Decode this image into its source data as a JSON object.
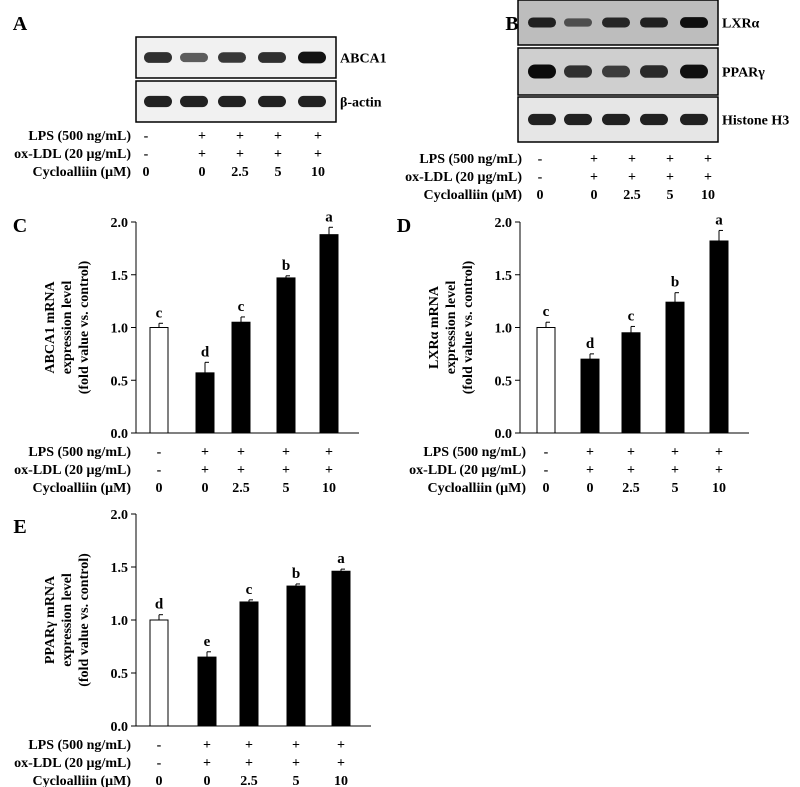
{
  "treatments": {
    "rows": [
      {
        "label": "LPS (500 ng/mL)",
        "values": [
          "-",
          "+",
          "+",
          "+",
          "+"
        ]
      },
      {
        "label": "ox-LDL (20 μg/mL)",
        "values": [
          "-",
          "+",
          "+",
          "+",
          "+"
        ]
      },
      {
        "label": "Cycloalliin (μM)",
        "values": [
          "0",
          "0",
          "2.5",
          "5",
          "10"
        ]
      }
    ]
  },
  "blots": [
    {
      "panel": "A",
      "bands": [
        "ABCA1",
        "β-actin"
      ]
    },
    {
      "panel": "B",
      "bands": [
        "LXRα",
        "PPARγ",
        "Histone H3"
      ]
    }
  ],
  "chart_data": [
    {
      "panel": "C",
      "type": "bar",
      "ylabel": "ABCA1 mRNA expression level (fold value vs. control)",
      "ylim": [
        0,
        2.0
      ],
      "yticks": [
        "0.0",
        "0.5",
        "1.0",
        "1.5",
        "2.0"
      ],
      "values": [
        1.0,
        0.57,
        1.05,
        1.47,
        1.88
      ],
      "errors": [
        0.04,
        0.1,
        0.05,
        0.02,
        0.07
      ],
      "significance": [
        "c",
        "d",
        "c",
        "b",
        "a"
      ],
      "bar_colors": [
        "#ffffff",
        "#000000",
        "#000000",
        "#000000",
        "#000000"
      ]
    },
    {
      "panel": "D",
      "type": "bar",
      "ylabel": "LXRα mRNA expression level (fold value vs. control)",
      "ylim": [
        0,
        2.0
      ],
      "yticks": [
        "0.0",
        "0.5",
        "1.0",
        "1.5",
        "2.0"
      ],
      "values": [
        1.0,
        0.7,
        0.95,
        1.24,
        1.82
      ],
      "errors": [
        0.05,
        0.05,
        0.06,
        0.09,
        0.1
      ],
      "significance": [
        "c",
        "d",
        "c",
        "b",
        "a"
      ],
      "bar_colors": [
        "#ffffff",
        "#000000",
        "#000000",
        "#000000",
        "#000000"
      ]
    },
    {
      "panel": "E",
      "type": "bar",
      "ylabel": "PPARγ mRNA expression level (fold value vs. control)",
      "ylim": [
        0,
        2.0
      ],
      "yticks": [
        "0.0",
        "0.5",
        "1.0",
        "1.5",
        "2.0"
      ],
      "values": [
        1.0,
        0.65,
        1.17,
        1.32,
        1.46
      ],
      "errors": [
        0.05,
        0.05,
        0.02,
        0.02,
        0.02
      ],
      "significance": [
        "d",
        "e",
        "c",
        "b",
        "a"
      ],
      "bar_colors": [
        "#ffffff",
        "#000000",
        "#000000",
        "#000000",
        "#000000"
      ]
    }
  ]
}
